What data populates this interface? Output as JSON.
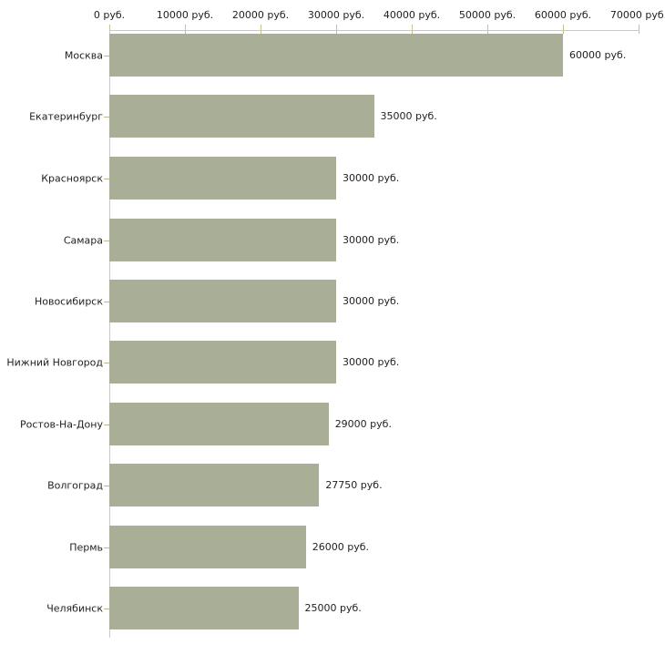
{
  "chart_data": {
    "type": "bar",
    "orientation": "horizontal",
    "title": "",
    "xlabel": "",
    "ylabel": "",
    "unit": "руб.",
    "xlim": [
      0,
      70000
    ],
    "grid": false,
    "legend": false,
    "categories": [
      "Москва",
      "Екатеринбург",
      "Красноярск",
      "Самара",
      "Новосибирск",
      "Нижний Новгород",
      "Ростов-На-Дону",
      "Волгоград",
      "Пермь",
      "Челябинск"
    ],
    "values": [
      60000,
      35000,
      30000,
      30000,
      30000,
      30000,
      29000,
      27750,
      26000,
      25000
    ],
    "value_labels": [
      "60000 руб.",
      "35000 руб.",
      "30000 руб.",
      "30000 руб.",
      "30000 руб.",
      "30000 руб.",
      "29000 руб.",
      "27750 руб.",
      "26000 руб.",
      "25000 руб."
    ],
    "x_ticks": [
      {
        "value": 0,
        "label": "0 руб."
      },
      {
        "value": 10000,
        "label": "10000 руб."
      },
      {
        "value": 20000,
        "label": "20000 руб."
      },
      {
        "value": 30000,
        "label": "30000 руб."
      },
      {
        "value": 40000,
        "label": "40000 руб."
      },
      {
        "value": 50000,
        "label": "50000 руб."
      },
      {
        "value": 60000,
        "label": "60000 руб."
      },
      {
        "value": 70000,
        "label": "70000 руб."
      }
    ],
    "colors": {
      "bar": "#a9af97",
      "axis": "#c8c8c8",
      "tick": "#c2c28c",
      "category_tick": "#b9b98a",
      "text": "#1f1f1f",
      "background": "#ffffff"
    }
  }
}
